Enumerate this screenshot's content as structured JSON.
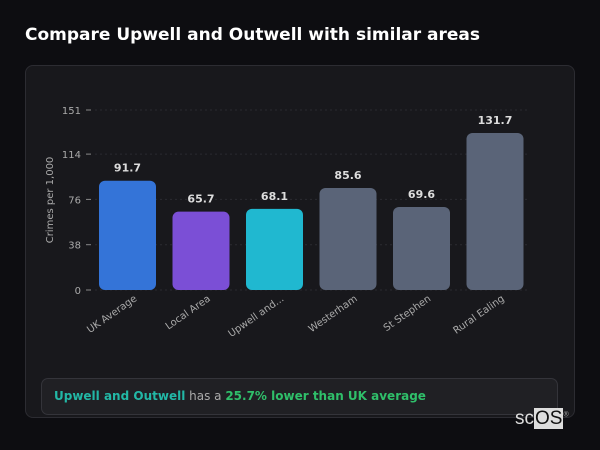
{
  "title": "Compare Upwell and Outwell with similar areas",
  "chart_data": {
    "type": "bar",
    "ylabel": "Crimes per 1,000",
    "ylim": [
      0,
      151
    ],
    "yticks": [
      0,
      38,
      76,
      114,
      151
    ],
    "grid": true,
    "categories": [
      "UK Average",
      "Local Area",
      "Upwell and...",
      "Westerham",
      "St Stephen",
      "Rural Ealing"
    ],
    "values": [
      91.7,
      65.7,
      68.1,
      85.6,
      69.6,
      131.7
    ],
    "data_labels": [
      "91.7",
      "65.7",
      "68.1",
      "85.6",
      "69.6",
      "131.7"
    ],
    "colors": [
      "#3474d8",
      "#7b4fd6",
      "#20b8d0",
      "#5a6478",
      "#5a6478",
      "#5a6478"
    ]
  },
  "note": {
    "area": "Upwell and Outwell",
    "middle": " has a ",
    "comparison": "25.7% lower than UK average"
  },
  "logo": {
    "text_a": "sc",
    "text_b": "OS",
    "mark": "®"
  }
}
